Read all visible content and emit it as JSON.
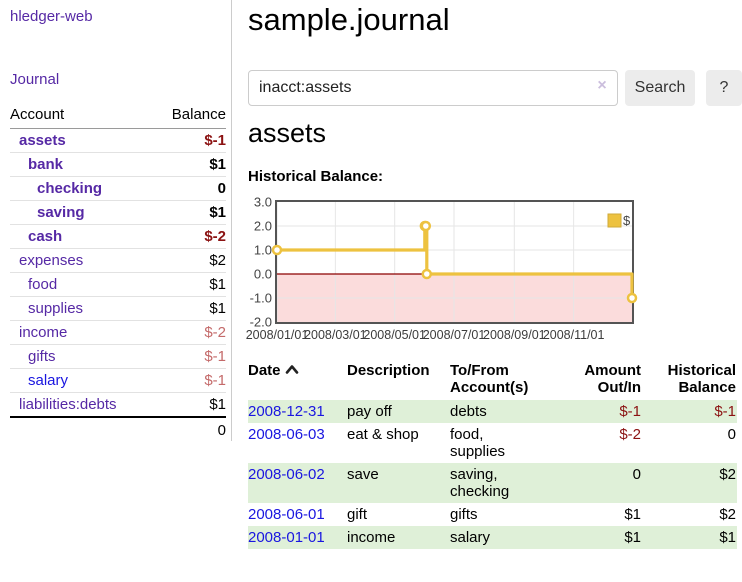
{
  "colors": {
    "link_purple": "#5629a5",
    "link_blue": "#1a16e0",
    "negative_strong": "#8b1212",
    "negative_soft": "#c46a6a",
    "row_green": "#dff0d8",
    "chart_line": "#edc240",
    "chart_negative_fill": "#fbdcdc",
    "chart_zero_line": "#8b0000",
    "chart_border": "#545454",
    "chart_grid": "#e6e6e6"
  },
  "sidebar": {
    "brand": "hledger-web",
    "nav_journal": "Journal",
    "accounts": {
      "header_account": "Account",
      "header_balance": "Balance",
      "rows": [
        {
          "name": "assets",
          "depth": 0,
          "bold": true,
          "balance": "$-1",
          "balance_class": "neg-strong"
        },
        {
          "name": "bank",
          "depth": 1,
          "bold": true,
          "balance": "$1",
          "balance_class": ""
        },
        {
          "name": "checking",
          "depth": 2,
          "bold": true,
          "balance": "0",
          "balance_class": ""
        },
        {
          "name": "saving",
          "depth": 2,
          "bold": true,
          "balance": "$1",
          "balance_class": ""
        },
        {
          "name": "cash",
          "depth": 1,
          "bold": true,
          "balance": "$-2",
          "balance_class": "neg-strong"
        },
        {
          "name": "expenses",
          "depth": 0,
          "bold": false,
          "balance": "$2",
          "balance_class": ""
        },
        {
          "name": "food",
          "depth": 1,
          "bold": false,
          "balance": "$1",
          "balance_class": ""
        },
        {
          "name": "supplies",
          "depth": 1,
          "bold": false,
          "balance": "$1",
          "balance_class": ""
        },
        {
          "name": "income",
          "depth": 0,
          "bold": false,
          "balance": "$-2",
          "balance_class": "neg-soft"
        },
        {
          "name": "gifts",
          "depth": 1,
          "bold": false,
          "balance": "$-1",
          "balance_class": "neg-soft"
        },
        {
          "name": "salary",
          "depth": 1,
          "bold": false,
          "balance": "$-1",
          "balance_class": "neg-soft",
          "link_color": "blue"
        },
        {
          "name": "liabilities:debts",
          "depth": 0,
          "bold": false,
          "balance": "$1",
          "balance_class": ""
        }
      ],
      "total": "0"
    }
  },
  "main": {
    "title": "sample.journal",
    "search": {
      "value": "inacct:assets",
      "clear_icon": "×",
      "button_label": "Search",
      "help_label": "?"
    },
    "account_heading": "assets",
    "chart_heading": "Historical Balance:",
    "register": {
      "headers": {
        "date": "Date",
        "description": "Description",
        "accounts": "To/From Account(s)",
        "amount": "Amount Out/In",
        "balance": "Historical Balance"
      },
      "rows": [
        {
          "date": "2008-12-31",
          "description": "pay off",
          "accounts": "debts",
          "amount": "$-1",
          "amount_negative": true,
          "balance": "$-1",
          "balance_negative": true
        },
        {
          "date": "2008-06-03",
          "description": "eat & shop",
          "accounts": "food, supplies",
          "amount": "$-2",
          "amount_negative": true,
          "balance": "0",
          "balance_negative": false
        },
        {
          "date": "2008-06-02",
          "description": "save",
          "accounts": "saving, checking",
          "amount": "0",
          "amount_negative": false,
          "balance": "$2",
          "balance_negative": false
        },
        {
          "date": "2008-06-01",
          "description": "gift",
          "accounts": "gifts",
          "amount": "$1",
          "amount_negative": false,
          "balance": "$2",
          "balance_negative": false
        },
        {
          "date": "2008-01-01",
          "description": "income",
          "accounts": "salary",
          "amount": "$1",
          "amount_negative": false,
          "balance": "$1",
          "balance_negative": false
        }
      ]
    }
  },
  "chart_data": {
    "type": "line",
    "step": true,
    "title": "Historical Balance:",
    "legend": [
      "$"
    ],
    "legend_position": "top-right",
    "grid": true,
    "x_range": [
      "2008-01-01",
      "2008-12-31"
    ],
    "ylim": [
      -2,
      3
    ],
    "yticks": [
      3,
      2,
      1,
      0,
      -1,
      -2
    ],
    "xtick_labels": [
      "2008/01/01",
      "2008/03/01",
      "2008/05/01",
      "2008/07/01",
      "2008/09/01",
      "2008/11/01"
    ],
    "negative_region": true,
    "series": [
      {
        "name": "$",
        "color": "#edc240",
        "points": [
          {
            "x": "2008-01-01",
            "y": 1
          },
          {
            "x": "2008-06-01",
            "y": 2
          },
          {
            "x": "2008-06-02",
            "y": 2
          },
          {
            "x": "2008-06-03",
            "y": 0
          },
          {
            "x": "2008-12-31",
            "y": -1
          }
        ]
      }
    ]
  }
}
